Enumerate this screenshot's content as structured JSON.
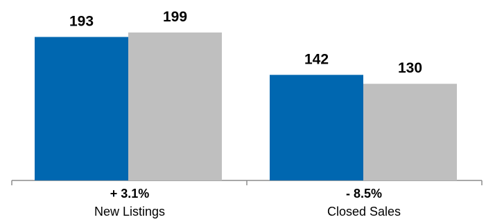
{
  "chart_data": {
    "type": "bar",
    "title": "",
    "xlabel": "",
    "ylabel": "",
    "categories": [
      "New Listings",
      "Closed Sales"
    ],
    "change_labels": [
      "+ 3.1%",
      "- 8.5%"
    ],
    "series": [
      {
        "values": [
          193,
          142
        ],
        "color": "#0067b0"
      },
      {
        "values": [
          199,
          130
        ],
        "color": "#bfbfbf"
      }
    ],
    "value_labels": [
      [
        "193",
        "142"
      ],
      [
        "199",
        "130"
      ]
    ],
    "grid": false,
    "legend": "none"
  }
}
